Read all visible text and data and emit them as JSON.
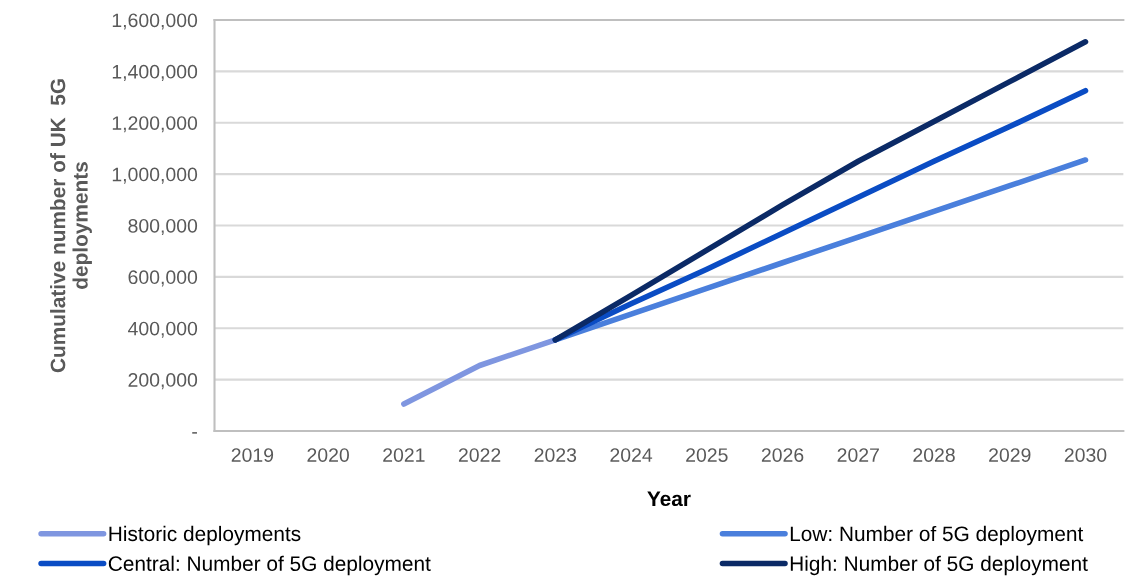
{
  "chart_data": {
    "type": "line",
    "xlabel": "Year",
    "ylabel": "Cumulative number of UK  5G\ndeployments",
    "categories": [
      "2019",
      "2020",
      "2021",
      "2022",
      "2023",
      "2024",
      "2025",
      "2026",
      "2027",
      "2028",
      "2029",
      "2030"
    ],
    "series": [
      {
        "name": "Historic deployments",
        "color": "#7f96e0",
        "values": [
          null,
          null,
          105000,
          255000,
          355000,
          null,
          null,
          null,
          null,
          null,
          null,
          null
        ]
      },
      {
        "name": "Low: Number of 5G deployment",
        "color": "#4a7fdc",
        "values": [
          null,
          null,
          null,
          null,
          355000,
          455000,
          555000,
          655000,
          755000,
          855000,
          955000,
          1055000
        ]
      },
      {
        "name": "Central: Number of 5G deployment",
        "color": "#0a4cc4",
        "values": [
          null,
          null,
          null,
          null,
          355000,
          495000,
          630000,
          770000,
          910000,
          1050000,
          1185000,
          1325000
        ]
      },
      {
        "name": "High: Number of 5G deployment",
        "color": "#0b2a66",
        "values": [
          null,
          null,
          null,
          null,
          355000,
          528000,
          704000,
          880000,
          1050000,
          1205000,
          1360000,
          1515000
        ]
      }
    ],
    "ylim": [
      0,
      1600000
    ],
    "yticks": [
      {
        "value": 0,
        "label": "-"
      },
      {
        "value": 200000,
        "label": "200,000"
      },
      {
        "value": 400000,
        "label": "400,000"
      },
      {
        "value": 600000,
        "label": "600,000"
      },
      {
        "value": 800000,
        "label": "800,000"
      },
      {
        "value": 1000000,
        "label": "1,000,000"
      },
      {
        "value": 1200000,
        "label": "1,200,000"
      },
      {
        "value": 1400000,
        "label": "1,400,000"
      },
      {
        "value": 1600000,
        "label": "1,600,000"
      }
    ],
    "grid": "y",
    "legend": "bottom",
    "marker": "none",
    "line_style": "solid"
  }
}
